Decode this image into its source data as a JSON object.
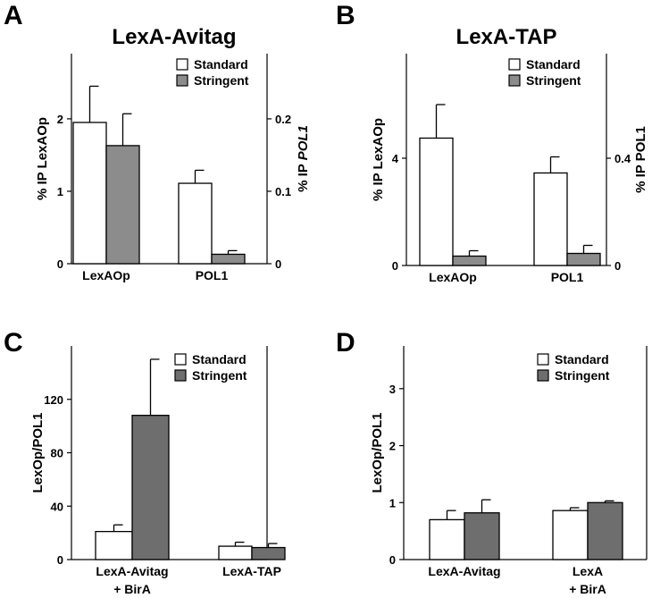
{
  "colors": {
    "standard": "#ffffff",
    "stringent_ab": "#8c8c8c",
    "stringent_cd": "#6e6e6e",
    "axis": "#000000"
  },
  "chart_data": [
    {
      "type": "bar",
      "letter": "A",
      "title": "LexA-Avitag",
      "ylabel": "% IP LexAOp",
      "ylabel_right": "% IP ",
      "ylabel_right_italic": "POL1",
      "ylim": [
        0,
        2.9
      ],
      "yticks": [
        0,
        1,
        2
      ],
      "ylim_right": [
        0,
        0.29
      ],
      "yticks_right": [
        {
          "value": 0,
          "label": "0"
        },
        {
          "value": 0.1,
          "label": "0.1"
        },
        {
          "value": 0.2,
          "label": "0.2"
        }
      ],
      "categories": [
        "LexAOp",
        "POL1"
      ],
      "axis_for_category": [
        "left",
        "right"
      ],
      "legend": [
        "Standard",
        "Stringent"
      ],
      "legend_position": "top-right",
      "series": [
        {
          "name": "Standard",
          "values": [
            1.95,
            0.111
          ],
          "errors": [
            0.5,
            0.018
          ]
        },
        {
          "name": "Stringent",
          "values": [
            1.63,
            0.013
          ],
          "errors": [
            0.44,
            0.005
          ]
        }
      ]
    },
    {
      "type": "bar",
      "letter": "B",
      "title": "LexA-TAP",
      "ylabel": "% IP LexAOp",
      "ylabel_right": "% IP POL1",
      "ylabel_right_italic": "",
      "ylim": [
        0,
        7.9
      ],
      "yticks": [
        0,
        4
      ],
      "ylim_right": [
        0,
        0.79
      ],
      "yticks_right": [
        {
          "value": 0,
          "label": "0"
        },
        {
          "value": 0.4,
          "label": "0.4"
        }
      ],
      "categories": [
        "LexAOp",
        "POL1"
      ],
      "axis_for_category": [
        "left",
        "right"
      ],
      "legend": [
        "Standard",
        "Stringent"
      ],
      "legend_position": "top-right",
      "series": [
        {
          "name": "Standard",
          "values": [
            4.75,
            0.345
          ],
          "errors": [
            1.25,
            0.06
          ]
        },
        {
          "name": "Stringent",
          "values": [
            0.35,
            0.045
          ],
          "errors": [
            0.2,
            0.03
          ]
        }
      ]
    },
    {
      "type": "bar",
      "letter": "C",
      "title": "",
      "ylabel": "LexOp/POL1",
      "ylim": [
        0,
        160
      ],
      "yticks": [
        0,
        40,
        80,
        120
      ],
      "categories": [
        [
          "LexA-Avitag",
          "+ BirA"
        ],
        [
          "LexA-TAP"
        ]
      ],
      "legend": [
        "Standard",
        "Stringent"
      ],
      "legend_position": "top-right",
      "series": [
        {
          "name": "Standard",
          "values": [
            21,
            10
          ],
          "errors": [
            5,
            3
          ]
        },
        {
          "name": "Stringent",
          "values": [
            108,
            9
          ],
          "errors": [
            42,
            3
          ]
        }
      ]
    },
    {
      "type": "bar",
      "letter": "D",
      "title": "",
      "ylabel": "LexOp/POL1",
      "ylim": [
        0,
        3.75
      ],
      "yticks": [
        0,
        1,
        2,
        3
      ],
      "categories": [
        [
          "LexA-Avitag"
        ],
        [
          "LexA",
          "+ BirA"
        ]
      ],
      "legend": [
        "Standard",
        "Stringent"
      ],
      "legend_position": "top-right",
      "series": [
        {
          "name": "Standard",
          "values": [
            0.7,
            0.86
          ],
          "errors": [
            0.16,
            0.05
          ]
        },
        {
          "name": "Stringent",
          "values": [
            0.82,
            1.0
          ],
          "errors": [
            0.23,
            0.03
          ]
        }
      ]
    }
  ]
}
